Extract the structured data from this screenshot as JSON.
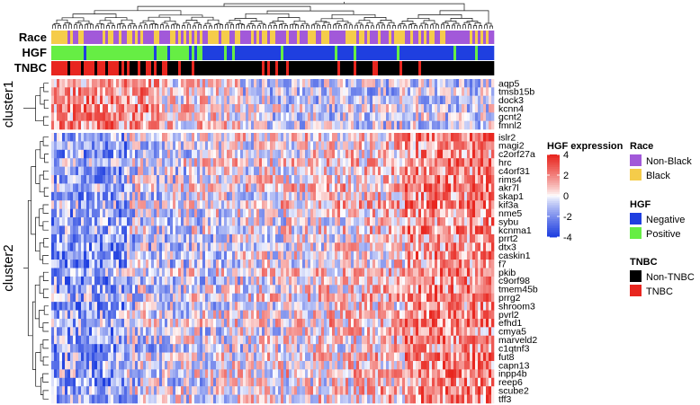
{
  "chart_data": {
    "type": "heatmap",
    "annotation_tracks": [
      "Race",
      "HGF",
      "TNBC"
    ],
    "clusters": [
      {
        "name": "cluster1",
        "genes": [
          "aqp5",
          "tmsb15b",
          "dock3",
          "kcnn4",
          "gcnt2",
          "fmnl2"
        ]
      },
      {
        "name": "cluster2",
        "genes": [
          "islr2",
          "magi2",
          "c2orf27a",
          "hrc",
          "c4orf31",
          "rims4",
          "akr7l",
          "skap1",
          "kif3a",
          "nme5",
          "sybu",
          "kcnma1",
          "prrt2",
          "dtx3",
          "caskin1",
          "f7",
          "pkib",
          "c9orf98",
          "tmem45b",
          "prrg2",
          "shroom3",
          "pvrl2",
          "efhd1",
          "cmya5",
          "marveld2",
          "c1qtnf3",
          "fut8",
          "capn13",
          "inpp4b",
          "reep6",
          "scube2",
          "tff3"
        ]
      }
    ],
    "color_scale": {
      "title": "HGF expression",
      "ticks": [
        4,
        2,
        0,
        -2,
        -4
      ],
      "range": [
        -4,
        4
      ],
      "high_color": "#e8261f",
      "mid_color": "#ffffff",
      "low_color": "#1f3fe0"
    },
    "legends": [
      {
        "title": "Race",
        "items": [
          {
            "label": "Non-Black",
            "color": "#a259d9"
          },
          {
            "label": "Black",
            "color": "#f5cc4a"
          }
        ]
      },
      {
        "title": "HGF",
        "items": [
          {
            "label": "Negative",
            "color": "#1f3fe0"
          },
          {
            "label": "Positive",
            "color": "#66ee44"
          }
        ]
      },
      {
        "title": "TNBC",
        "items": [
          {
            "label": "Non-TNBC",
            "color": "#000000"
          },
          {
            "label": "TNBC",
            "color": "#e8261f"
          }
        ]
      }
    ]
  }
}
